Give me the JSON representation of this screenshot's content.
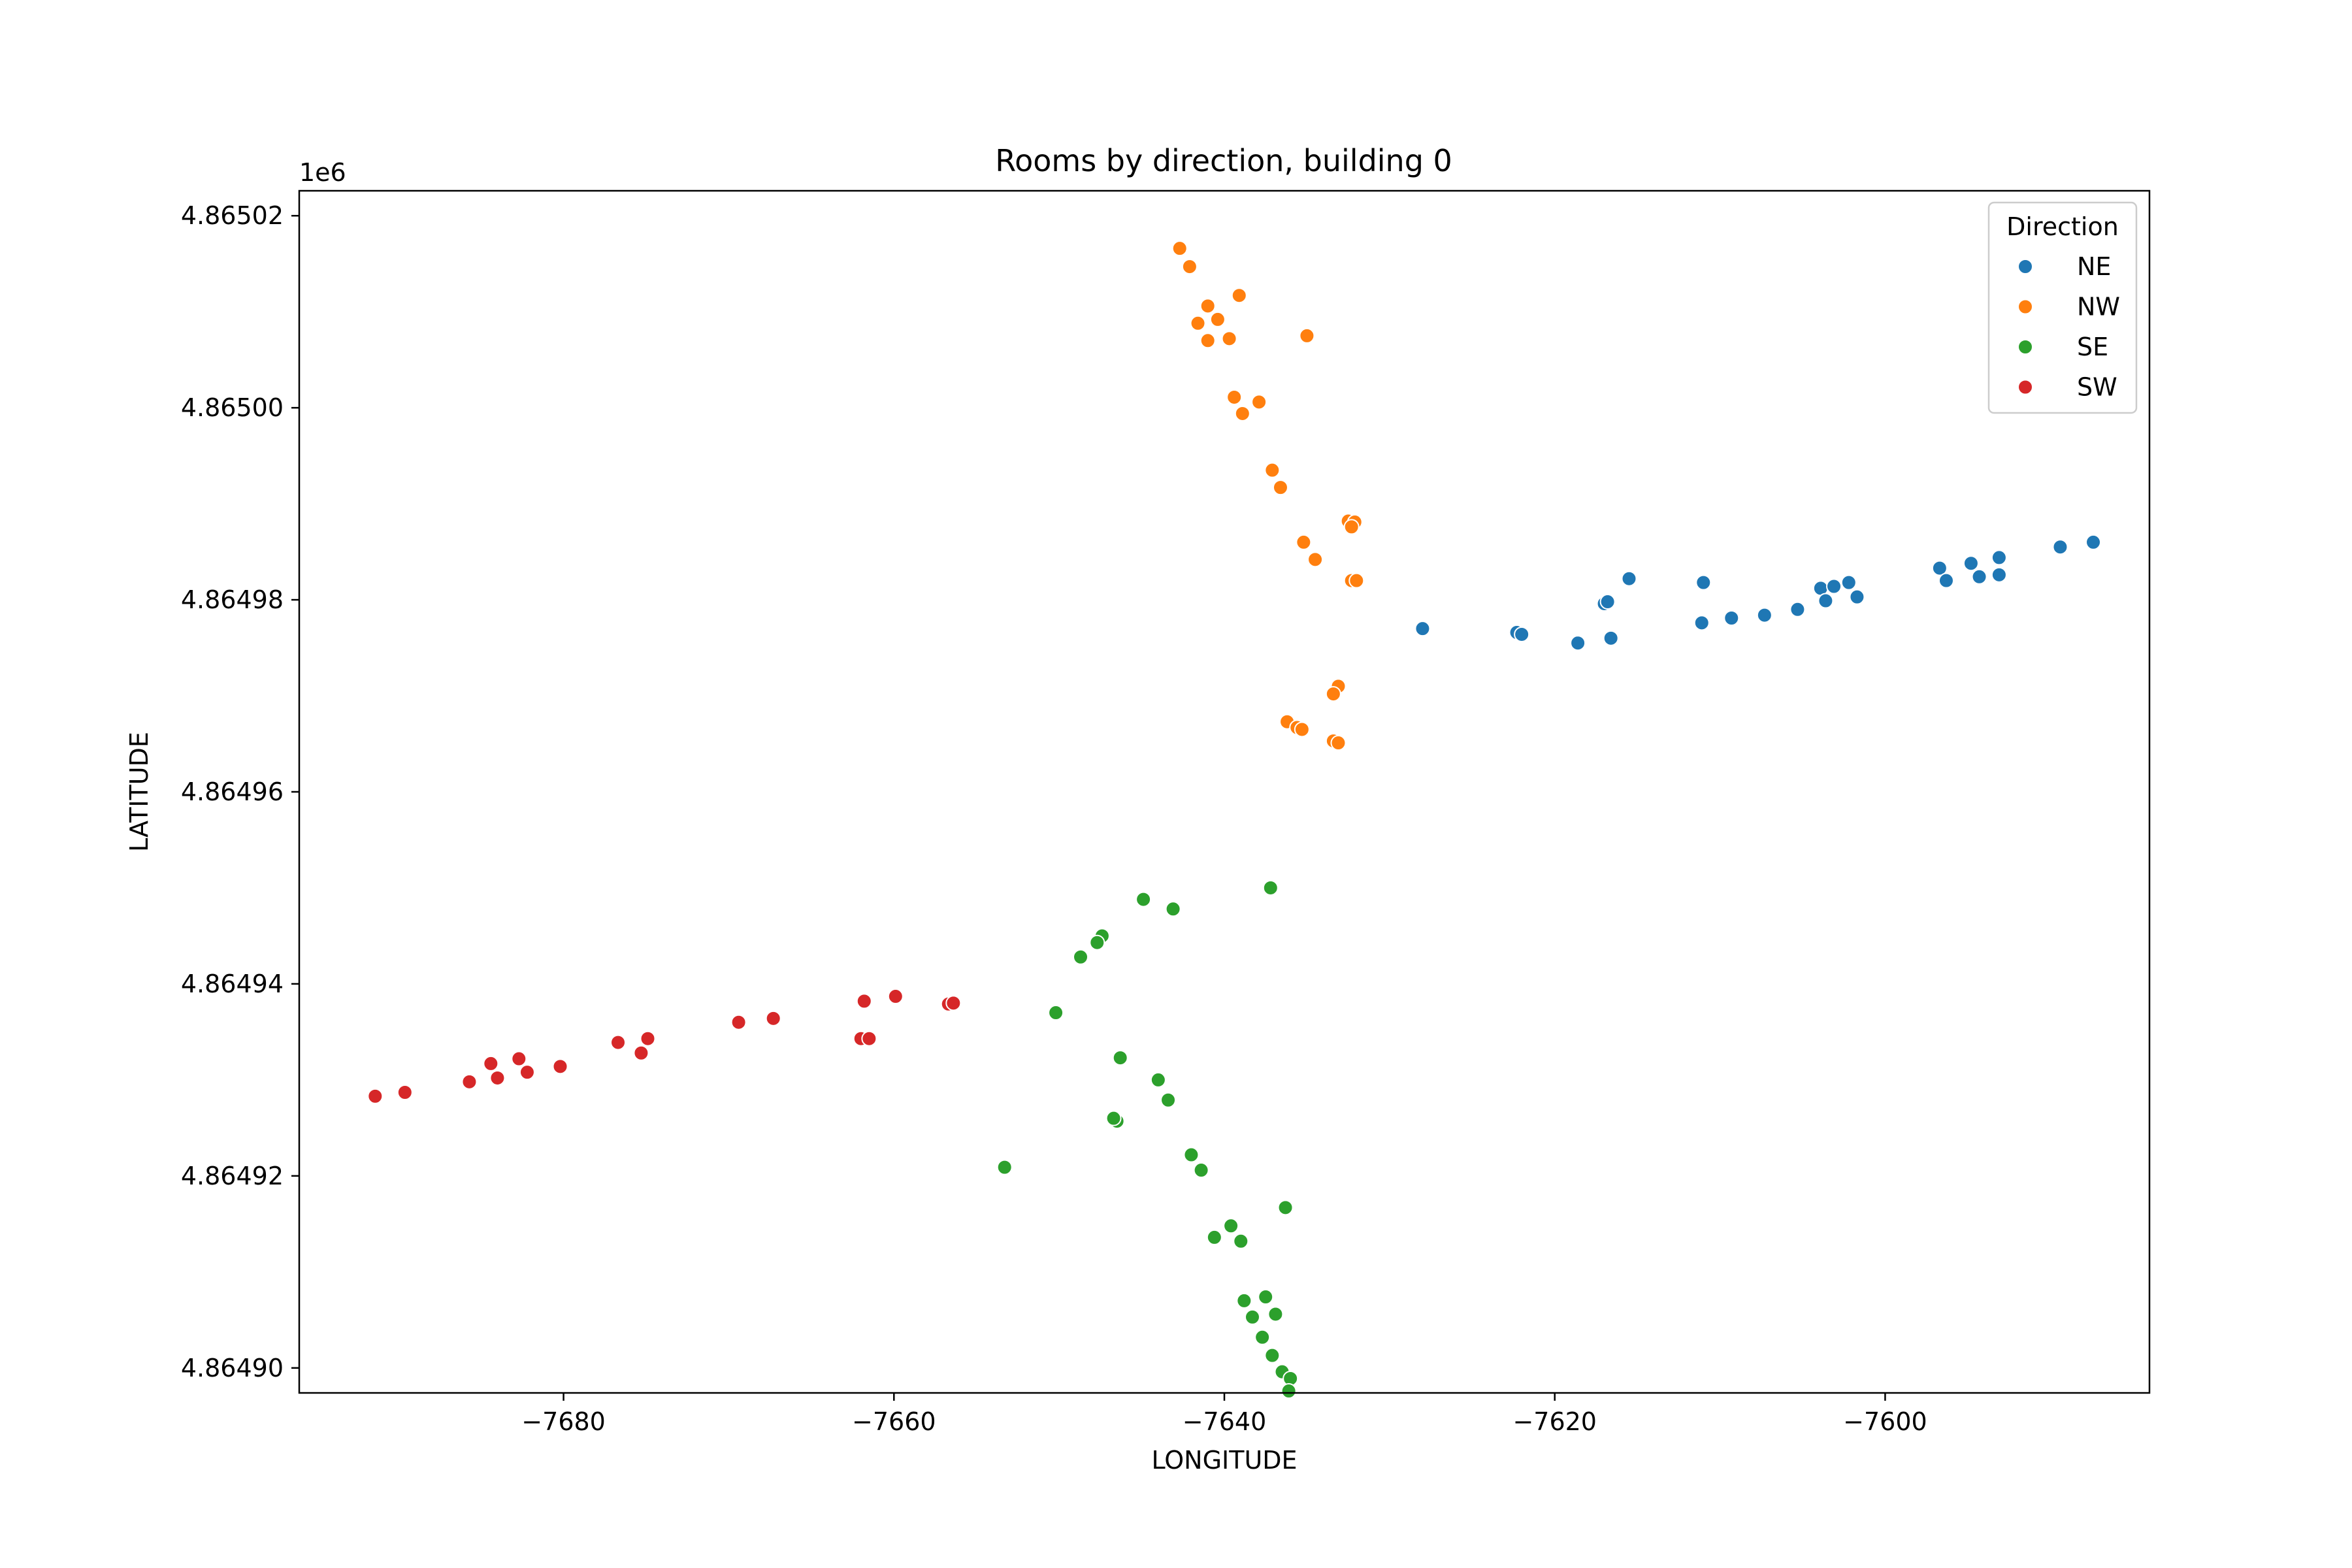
{
  "chart_data": {
    "type": "scatter",
    "title": "Rooms by direction, building 0",
    "xlabel": "LONGITUDE",
    "ylabel": "LATITUDE",
    "y_offset_label": "1e6",
    "xlim": [
      -7696,
      -7584
    ],
    "ylim": [
      4864897.4,
      4865022.6
    ],
    "x_ticks": [
      -7680,
      -7660,
      -7640,
      -7620,
      -7600
    ],
    "x_tick_labels": [
      "−7680",
      "−7660",
      "−7640",
      "−7620",
      "−7600"
    ],
    "y_ticks": [
      4864900,
      4864920,
      4864940,
      4864960,
      4864980,
      4865000,
      4865020
    ],
    "y_tick_labels": [
      "4.86490",
      "4.86492",
      "4.86494",
      "4.86496",
      "4.86498",
      "4.86500",
      "4.86502"
    ],
    "legend": {
      "title": "Direction",
      "position": "upper right"
    },
    "grid": false,
    "series": [
      {
        "name": "NE",
        "color": "#1f77b4",
        "points": [
          [
            -7628.0,
            4864977.0
          ],
          [
            -7622.3,
            4864976.6
          ],
          [
            -7622.0,
            4864976.4
          ],
          [
            -7618.6,
            4864975.5
          ],
          [
            -7616.6,
            4864976.0
          ],
          [
            -7617.0,
            4864979.6
          ],
          [
            -7616.8,
            4864979.8
          ],
          [
            -7615.5,
            4864982.2
          ],
          [
            -7611.1,
            4864977.6
          ],
          [
            -7611.0,
            4864981.8
          ],
          [
            -7609.3,
            4864978.1
          ],
          [
            -7607.3,
            4864978.4
          ],
          [
            -7605.3,
            4864979.0
          ],
          [
            -7603.9,
            4864981.2
          ],
          [
            -7603.6,
            4864979.9
          ],
          [
            -7603.1,
            4864981.4
          ],
          [
            -7602.2,
            4864981.8
          ],
          [
            -7601.7,
            4864980.3
          ],
          [
            -7596.7,
            4864983.3
          ],
          [
            -7596.3,
            4864982.0
          ],
          [
            -7594.8,
            4864983.8
          ],
          [
            -7594.3,
            4864982.4
          ],
          [
            -7593.1,
            4864984.4
          ],
          [
            -7593.1,
            4864982.6
          ],
          [
            -7589.4,
            4864985.5
          ],
          [
            -7587.4,
            4864986.0
          ]
        ]
      },
      {
        "name": "NW",
        "color": "#ff7f0e",
        "points": [
          [
            -7642.7,
            4865016.6
          ],
          [
            -7642.1,
            4865014.7
          ],
          [
            -7641.0,
            4865010.6
          ],
          [
            -7641.6,
            4865008.8
          ],
          [
            -7640.4,
            4865009.2
          ],
          [
            -7641.0,
            4865007.0
          ],
          [
            -7639.1,
            4865011.7
          ],
          [
            -7639.7,
            4865007.2
          ],
          [
            -7635.0,
            4865007.5
          ],
          [
            -7639.4,
            4865001.1
          ],
          [
            -7637.9,
            4865000.6
          ],
          [
            -7638.9,
            4864999.4
          ],
          [
            -7637.1,
            4864993.5
          ],
          [
            -7636.6,
            4864991.7
          ],
          [
            -7632.5,
            4864988.2
          ],
          [
            -7632.1,
            4864988.1
          ],
          [
            -7632.3,
            4864987.6
          ],
          [
            -7635.2,
            4864986.0
          ],
          [
            -7634.5,
            4864984.2
          ],
          [
            -7632.3,
            4864982.0
          ],
          [
            -7632.0,
            4864982.0
          ],
          [
            -7633.1,
            4864971.0
          ],
          [
            -7633.4,
            4864970.2
          ],
          [
            -7636.2,
            4864967.3
          ],
          [
            -7635.6,
            4864966.7
          ],
          [
            -7635.3,
            4864966.5
          ],
          [
            -7633.4,
            4864965.3
          ],
          [
            -7633.1,
            4864965.1
          ]
        ]
      },
      {
        "name": "SE",
        "color": "#2ca02c",
        "points": [
          [
            -7637.2,
            4864950.0
          ],
          [
            -7644.9,
            4864948.8
          ],
          [
            -7643.1,
            4864947.8
          ],
          [
            -7647.4,
            4864945.0
          ],
          [
            -7647.7,
            4864944.3
          ],
          [
            -7648.7,
            4864942.8
          ],
          [
            -7650.2,
            4864937.0
          ],
          [
            -7646.3,
            4864932.3
          ],
          [
            -7644.0,
            4864930.0
          ],
          [
            -7643.4,
            4864927.9
          ],
          [
            -7646.5,
            4864925.7
          ],
          [
            -7646.7,
            4864926.0
          ],
          [
            -7653.3,
            4864920.9
          ],
          [
            -7642.0,
            4864922.2
          ],
          [
            -7641.4,
            4864920.6
          ],
          [
            -7636.3,
            4864916.7
          ],
          [
            -7639.6,
            4864914.8
          ],
          [
            -7640.6,
            4864913.6
          ],
          [
            -7639.0,
            4864913.2
          ],
          [
            -7637.5,
            4864907.4
          ],
          [
            -7638.8,
            4864907.0
          ],
          [
            -7636.9,
            4864905.6
          ],
          [
            -7638.3,
            4864905.3
          ],
          [
            -7637.7,
            4864903.2
          ],
          [
            -7637.1,
            4864901.3
          ],
          [
            -7636.5,
            4864899.6
          ],
          [
            -7636.0,
            4864898.9
          ],
          [
            -7636.1,
            4864897.6
          ]
        ]
      },
      {
        "name": "SW",
        "color": "#d62728",
        "points": [
          [
            -7691.4,
            4864928.3
          ],
          [
            -7689.6,
            4864928.7
          ],
          [
            -7685.7,
            4864929.8
          ],
          [
            -7684.4,
            4864931.7
          ],
          [
            -7684.0,
            4864930.2
          ],
          [
            -7682.7,
            4864932.2
          ],
          [
            -7682.2,
            4864930.8
          ],
          [
            -7680.2,
            4864931.4
          ],
          [
            -7676.7,
            4864933.9
          ],
          [
            -7675.3,
            4864932.8
          ],
          [
            -7674.9,
            4864934.3
          ],
          [
            -7669.4,
            4864936.0
          ],
          [
            -7667.3,
            4864936.4
          ],
          [
            -7662.0,
            4864934.3
          ],
          [
            -7661.5,
            4864934.3
          ],
          [
            -7661.8,
            4864938.2
          ],
          [
            -7659.9,
            4864938.7
          ],
          [
            -7656.7,
            4864937.9
          ],
          [
            -7656.4,
            4864938.0
          ]
        ]
      }
    ]
  }
}
